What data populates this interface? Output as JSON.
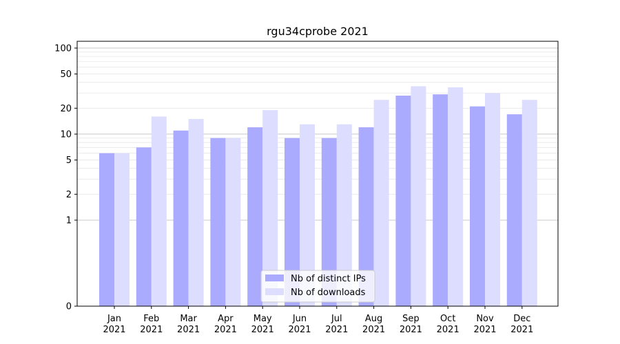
{
  "chart_data": {
    "type": "bar",
    "title": "rgu34cprobe 2021",
    "xlabel": "",
    "ylabel": "",
    "yscale": "symlog",
    "ylim": [
      0,
      120
    ],
    "yticks": [
      0,
      1,
      2,
      5,
      10,
      20,
      50,
      100
    ],
    "ytick_labels": [
      "0",
      "1",
      "2",
      "5",
      "10",
      "20",
      "50",
      "100"
    ],
    "categories": [
      {
        "month": "Jan",
        "year": "2021"
      },
      {
        "month": "Feb",
        "year": "2021"
      },
      {
        "month": "Mar",
        "year": "2021"
      },
      {
        "month": "Apr",
        "year": "2021"
      },
      {
        "month": "May",
        "year": "2021"
      },
      {
        "month": "Jun",
        "year": "2021"
      },
      {
        "month": "Jul",
        "year": "2021"
      },
      {
        "month": "Aug",
        "year": "2021"
      },
      {
        "month": "Sep",
        "year": "2021"
      },
      {
        "month": "Oct",
        "year": "2021"
      },
      {
        "month": "Nov",
        "year": "2021"
      },
      {
        "month": "Dec",
        "year": "2021"
      }
    ],
    "series": [
      {
        "name": "Nb of distinct IPs",
        "color": "#aaaaff",
        "values": [
          6,
          7,
          11,
          9,
          12,
          9,
          9,
          12,
          28,
          29,
          21,
          17
        ]
      },
      {
        "name": "Nb of downloads",
        "color": "#ddddff",
        "values": [
          6,
          16,
          15,
          9,
          19,
          13,
          13,
          25,
          36,
          35,
          30,
          25
        ]
      }
    ],
    "grid": true,
    "legend_position": "bottom-center"
  }
}
